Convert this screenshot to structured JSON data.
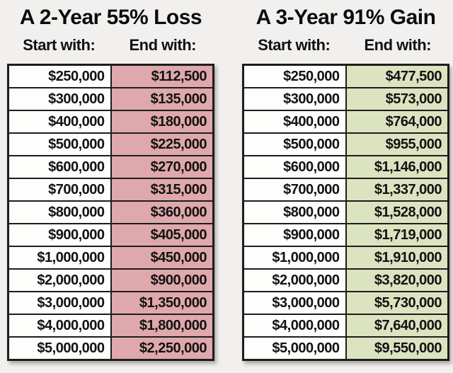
{
  "page": {
    "background": "#f2f0ee",
    "border_color": "#1d1d1d",
    "text_color": "#111111"
  },
  "chart_data": [
    {
      "type": "table",
      "title": "A 2-Year 55% Loss",
      "columns": [
        "Start with:",
        "End with:"
      ],
      "start_column_color": "#fdfdfc",
      "end_column_color": "#dfa8ac",
      "rows": [
        [
          "$250,000",
          "$112,500"
        ],
        [
          "$300,000",
          "$135,000"
        ],
        [
          "$400,000",
          "$180,000"
        ],
        [
          "$500,000",
          "$225,000"
        ],
        [
          "$600,000",
          "$270,000"
        ],
        [
          "$700,000",
          "$315,000"
        ],
        [
          "$800,000",
          "$360,000"
        ],
        [
          "$900,000",
          "$405,000"
        ],
        [
          "$1,000,000",
          "$450,000"
        ],
        [
          "$2,000,000",
          "$900,000"
        ],
        [
          "$3,000,000",
          "$1,350,000"
        ],
        [
          "$4,000,000",
          "$1,800,000"
        ],
        [
          "$5,000,000",
          "$2,250,000"
        ]
      ]
    },
    {
      "type": "table",
      "title": "A 3-Year 91% Gain",
      "columns": [
        "Start with:",
        "End with:"
      ],
      "start_column_color": "#fdfdfc",
      "end_column_color": "#dce3c0",
      "rows": [
        [
          "$250,000",
          "$477,500"
        ],
        [
          "$300,000",
          "$573,000"
        ],
        [
          "$400,000",
          "$764,000"
        ],
        [
          "$500,000",
          "$955,000"
        ],
        [
          "$600,000",
          "$1,146,000"
        ],
        [
          "$700,000",
          "$1,337,000"
        ],
        [
          "$800,000",
          "$1,528,000"
        ],
        [
          "$900,000",
          "$1,719,000"
        ],
        [
          "$1,000,000",
          "$1,910,000"
        ],
        [
          "$2,000,000",
          "$3,820,000"
        ],
        [
          "$3,000,000",
          "$5,730,000"
        ],
        [
          "$4,000,000",
          "$7,640,000"
        ],
        [
          "$5,000,000",
          "$9,550,000"
        ]
      ]
    }
  ]
}
